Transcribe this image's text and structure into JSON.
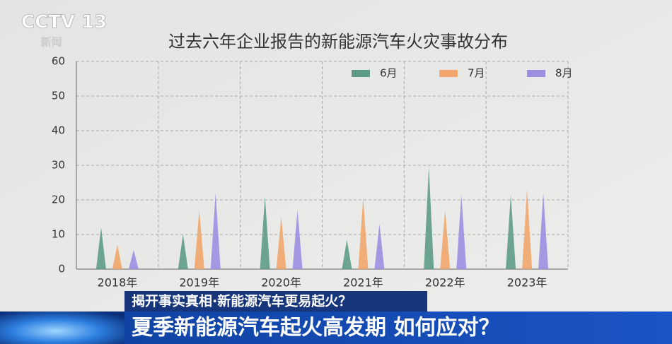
{
  "logo": {
    "channel": "CCTV 13",
    "name": "新闻"
  },
  "banner": {
    "subtitle": "揭开事实真相·新能源汽车更易起火？",
    "headline": "夏季新能源汽车起火高发期 如何应对？"
  },
  "chart_data": {
    "type": "spike",
    "title": "过去六年企业报告的新能源汽车火灾事故分布",
    "categories": [
      "2018年",
      "2019年",
      "2020年",
      "2021年",
      "2022年",
      "2023年"
    ],
    "series": [
      {
        "name": "6月",
        "color": "#5e9b87",
        "values": [
          12,
          10,
          21,
          8.5,
          29.5,
          21.5
        ]
      },
      {
        "name": "7月",
        "color": "#f2a66c",
        "values": [
          7,
          17,
          15,
          20.5,
          17,
          23
        ]
      },
      {
        "name": "8月",
        "color": "#9c8fe2",
        "values": [
          5.5,
          22,
          17,
          13,
          21.5,
          22
        ]
      }
    ],
    "ylim": [
      0,
      60
    ],
    "yticks": [
      0,
      10,
      20,
      30,
      40,
      50,
      60
    ],
    "grid": true
  }
}
